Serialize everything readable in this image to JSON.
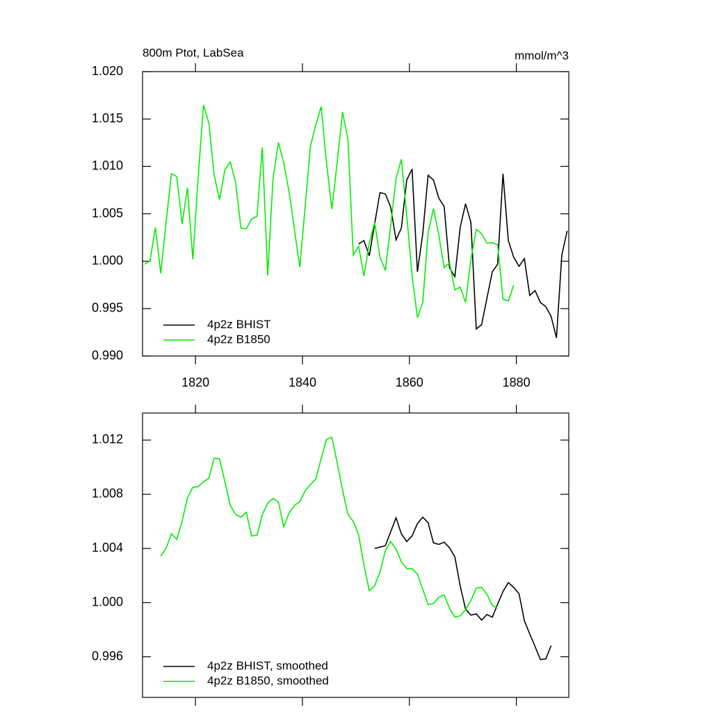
{
  "chart_data": [
    {
      "type": "line",
      "title": "800m Ptot, LabSea",
      "units": "mmol/m^3",
      "xlim": [
        1810.1,
        1889.8
      ],
      "xticks": [
        1820,
        1840,
        1860,
        1880
      ],
      "ylim": [
        0.99,
        1.02
      ],
      "yticks": [
        {
          "value": 0.99,
          "label": "0.990"
        },
        0.995,
        {
          "value": 1.0,
          "label": "1.000"
        },
        1.005,
        {
          "value": 1.01,
          "label": "1.010"
        },
        1.015,
        {
          "value": 1.02,
          "label": "1.020"
        }
      ],
      "legend": "lower left",
      "series": [
        {
          "name": "4p2z BHIST",
          "color": "#000000",
          "x": [
            1850.5,
            1851.5,
            1852.5,
            1853.5,
            1854.5,
            1855.5,
            1856.5,
            1857.5,
            1858.5,
            1859.5,
            1860.5,
            1861.5,
            1862.5,
            1863.5,
            1864.5,
            1865.5,
            1866.5,
            1867.5,
            1868.5,
            1869.5,
            1870.5,
            1871.5,
            1872.5,
            1873.5,
            1874.5,
            1875.5,
            1876.5,
            1877.5,
            1878.5,
            1879.5,
            1880.5,
            1881.5,
            1882.5,
            1883.5,
            1884.5,
            1885.5,
            1886.5,
            1887.5,
            1888.5,
            1889.5
          ],
          "values": [
            1.00181,
            1.00218,
            1.00057,
            1.00394,
            1.00724,
            1.0071,
            1.0057,
            1.00225,
            1.0035,
            1.00856,
            1.00973,
            0.99888,
            1.00291,
            1.00907,
            1.00856,
            1.00665,
            1.00577,
            0.99932,
            0.99837,
            1.00357,
            1.00606,
            1.00409,
            0.99286,
            0.9933,
            0.99609,
            0.99888,
            0.99969,
            1.00922,
            1.00218,
            1.00042,
            0.99946,
            1.00027,
            0.99638,
            0.9969,
            0.99565,
            0.99521,
            0.99418,
            0.99191,
            1.00064,
            1.0032
          ]
        },
        {
          "name": "4p2z B1850",
          "color": "#00ee00",
          "x": [
            1810.5,
            1811.5,
            1812.5,
            1813.5,
            1814.5,
            1815.5,
            1816.5,
            1817.5,
            1818.5,
            1819.5,
            1820.5,
            1821.5,
            1822.5,
            1823.5,
            1824.5,
            1825.5,
            1826.5,
            1827.5,
            1828.5,
            1829.5,
            1830.5,
            1831.5,
            1832.5,
            1833.5,
            1834.5,
            1835.5,
            1836.5,
            1837.5,
            1838.5,
            1839.5,
            1840.5,
            1841.5,
            1842.5,
            1843.5,
            1844.5,
            1845.5,
            1846.5,
            1847.5,
            1848.5,
            1849.5,
            1850.5,
            1851.5,
            1852.5,
            1853.5,
            1854.5,
            1855.5,
            1856.5,
            1857.5,
            1858.5,
            1859.5,
            1860.5,
            1861.5,
            1862.5,
            1863.5,
            1864.5,
            1865.5,
            1866.5,
            1867.5,
            1868.5,
            1869.5,
            1870.5,
            1871.5,
            1872.5,
            1873.5,
            1874.5,
            1875.5,
            1876.5,
            1877.5,
            1878.5,
            1879.5
          ],
          "values": [
            0.99969,
            1.00005,
            1.00357,
            0.99873,
            1.00408,
            1.00922,
            1.00893,
            1.00394,
            1.00775,
            1.0002,
            1.00885,
            1.01648,
            1.01457,
            1.00907,
            1.0065,
            1.00966,
            1.01047,
            1.00834,
            1.0035,
            1.00342,
            1.00445,
            1.00474,
            1.012,
            0.99851,
            1.0087,
            1.01252,
            1.0104,
            1.00731,
            1.00335,
            0.99939,
            1.0057,
            1.01215,
            1.01435,
            1.01633,
            1.0104,
            1.00548,
            1.01047,
            1.01575,
            1.01289,
            1.00064,
            1.0016,
            0.99844,
            1.0019,
            1.00409,
            1.00042,
            0.99903,
            1.00372,
            1.0087,
            1.01076,
            1.00482,
            0.99851,
            0.99404,
            0.99565,
            1.00299,
            1.00555,
            1.00277,
            0.99932,
            0.99983,
            0.99697,
            0.99726,
            0.99565,
            1.0002,
            1.00335,
            1.00291,
            1.0019,
            1.00196,
            1.00174,
            0.99602,
            0.9958,
            0.99748
          ]
        }
      ]
    },
    {
      "type": "line",
      "xlim": [
        1810.1,
        1889.8
      ],
      "xticks": [
        1820,
        1840,
        1860,
        1880
      ],
      "ylim": [
        0.993,
        1.014
      ],
      "yticks": [
        0.996,
        {
          "value": 1.0,
          "label": "1.000"
        },
        1.004,
        1.008,
        1.012
      ],
      "legend": "lower left",
      "series": [
        {
          "name": "4p2z BHIST, smoothed",
          "color": "#000000",
          "x": [
            1853.5,
            1854.5,
            1855.5,
            1856.5,
            1857.5,
            1858.5,
            1859.5,
            1860.5,
            1861.5,
            1862.5,
            1863.5,
            1864.5,
            1865.5,
            1866.5,
            1867.5,
            1868.5,
            1869.5,
            1870.5,
            1871.5,
            1872.5,
            1873.5,
            1874.5,
            1875.5,
            1876.5,
            1877.5,
            1878.5,
            1879.5,
            1880.5,
            1881.5,
            1882.5,
            1883.5,
            1884.5,
            1885.5,
            1886.5
          ],
          "values": [
            1.004,
            1.0041,
            1.0042,
            1.00523,
            1.00626,
            1.00508,
            1.00451,
            1.00492,
            1.00584,
            1.00631,
            1.0059,
            1.00441,
            1.0043,
            1.00446,
            1.00405,
            1.00338,
            1.00123,
            0.99953,
            0.99907,
            0.99917,
            0.99871,
            0.99912,
            0.99892,
            0.99989,
            1.00082,
            1.00148,
            1.00112,
            1.00066,
            0.99866,
            0.99769,
            0.99676,
            0.99579,
            0.99584,
            0.99682
          ]
        },
        {
          "name": "4p2z B1850, smoothed",
          "color": "#00ee00",
          "x": [
            1813.5,
            1814.5,
            1815.5,
            1816.5,
            1817.5,
            1818.5,
            1819.5,
            1820.5,
            1821.5,
            1822.5,
            1823.5,
            1824.5,
            1825.5,
            1826.5,
            1827.5,
            1828.5,
            1829.5,
            1830.5,
            1831.5,
            1832.5,
            1833.5,
            1834.5,
            1835.5,
            1836.5,
            1837.5,
            1838.5,
            1839.5,
            1840.5,
            1841.5,
            1842.5,
            1843.5,
            1844.5,
            1845.5,
            1846.5,
            1847.5,
            1848.5,
            1849.5,
            1850.5,
            1851.5,
            1852.5,
            1853.5,
            1854.5,
            1855.5,
            1856.5,
            1857.5,
            1858.5,
            1859.5,
            1860.5,
            1861.5,
            1862.5,
            1863.5,
            1864.5,
            1865.5,
            1866.5,
            1867.5,
            1868.5,
            1869.5,
            1870.5,
            1871.5,
            1872.5,
            1873.5,
            1874.5,
            1875.5,
            1876.5
          ],
          "values": [
            1.00343,
            1.004,
            1.00508,
            1.00467,
            1.006,
            1.00774,
            1.00851,
            1.00856,
            1.00892,
            1.00918,
            1.01067,
            1.01062,
            1.00892,
            1.00718,
            1.00651,
            1.00631,
            1.00667,
            1.00492,
            1.00497,
            1.00651,
            1.00733,
            1.00769,
            1.00744,
            1.00559,
            1.00662,
            1.00718,
            1.00744,
            1.00826,
            1.00872,
            1.00913,
            1.01062,
            1.01205,
            1.01221,
            1.01031,
            1.00831,
            1.00651,
            1.006,
            1.00502,
            1.00277,
            1.00087,
            1.00123,
            1.00226,
            1.00384,
            1.00451,
            1.00395,
            1.00302,
            1.00251,
            1.00251,
            1.0021,
            1.00097,
            0.99984,
            0.99994,
            1.0004,
            1.00056,
            0.99958,
            0.99892,
            0.99902,
            0.99948,
            1.00015,
            1.00107,
            1.00112,
            1.00061,
            0.99979,
            0.99958
          ]
        }
      ]
    }
  ]
}
